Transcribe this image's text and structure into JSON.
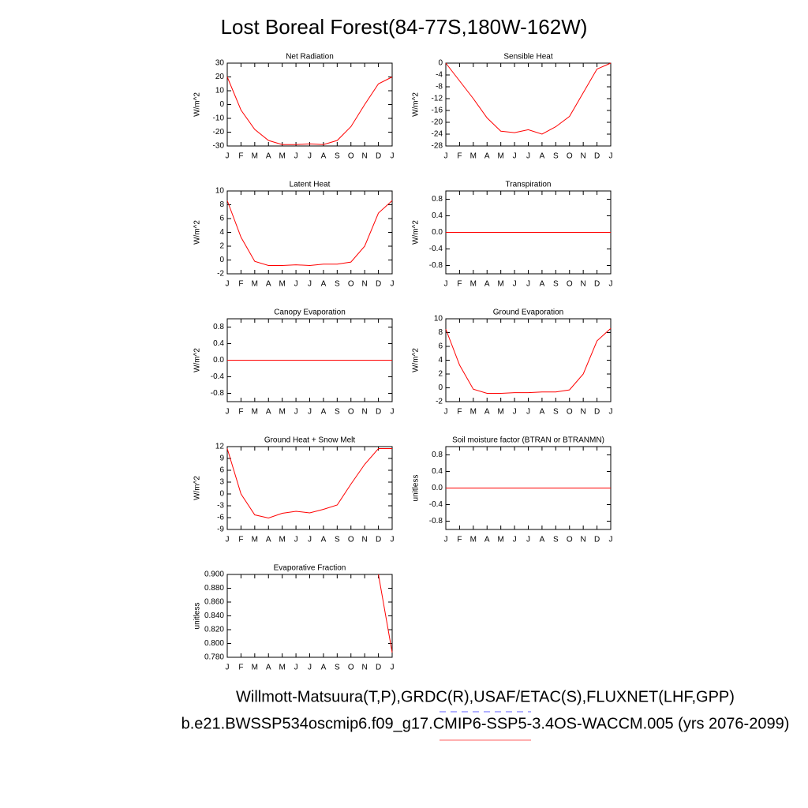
{
  "title": "Lost Boreal Forest(84-77S,180W-162W)",
  "footer": [
    {
      "text": "Willmott-Matsuura(T,P),GRDC(R),USAF/ETAC(S),FLUXNET(LHF,GPP)",
      "color": "#8080ff",
      "dashed": true
    },
    {
      "text": "b.e21.BWSSP534oscmip6.f09_g17.CMIP6-SSP5-3.4OS-WACCM.005 (yrs 2076-2099)",
      "color": "#ff8080",
      "dashed": false
    }
  ],
  "chart_data": [
    {
      "type": "line",
      "title": "Net Radiation",
      "ylabel": "W/m^2",
      "categories": [
        "J",
        "F",
        "M",
        "A",
        "M",
        "J",
        "J",
        "A",
        "S",
        "O",
        "N",
        "D",
        "J"
      ],
      "color": "#ff0000",
      "values": [
        20,
        -4,
        -18,
        -26,
        -29,
        -29,
        -28.5,
        -29,
        -26,
        -16,
        0,
        15,
        20
      ],
      "ylim": [
        -30,
        30
      ],
      "yticks": [
        -30,
        -20,
        -10,
        0,
        10,
        20,
        30
      ]
    },
    {
      "type": "line",
      "title": "Sensible Heat",
      "ylabel": "W/m^2",
      "categories": [
        "J",
        "F",
        "M",
        "A",
        "M",
        "J",
        "J",
        "A",
        "S",
        "O",
        "N",
        "D",
        "J"
      ],
      "color": "#ff0000",
      "values": [
        0,
        -6,
        -12,
        -18.5,
        -23,
        -23.5,
        -22.5,
        -24,
        -21.5,
        -18,
        -10,
        -2,
        0
      ],
      "ylim": [
        -28,
        0
      ],
      "yticks": [
        -28,
        -24,
        -20,
        -16,
        -12,
        -8,
        -4,
        0
      ]
    },
    {
      "type": "line",
      "title": "Latent Heat",
      "ylabel": "W/m^2",
      "categories": [
        "J",
        "F",
        "M",
        "A",
        "M",
        "J",
        "J",
        "A",
        "S",
        "O",
        "N",
        "D",
        "J"
      ],
      "color": "#ff0000",
      "values": [
        8.6,
        3.3,
        -0.2,
        -0.8,
        -0.8,
        -0.7,
        -0.8,
        -0.6,
        -0.6,
        -0.3,
        2,
        6.8,
        8.6
      ],
      "ylim": [
        -2,
        10
      ],
      "yticks": [
        -2,
        0,
        2,
        4,
        6,
        8,
        10
      ]
    },
    {
      "type": "line",
      "title": "Transpiration",
      "ylabel": "W/m^2",
      "categories": [
        "J",
        "F",
        "M",
        "A",
        "M",
        "J",
        "J",
        "A",
        "S",
        "O",
        "N",
        "D",
        "J"
      ],
      "color": "#ff0000",
      "values": [
        0,
        0,
        0,
        0,
        0,
        0,
        0,
        0,
        0,
        0,
        0,
        0,
        0
      ],
      "ylim": [
        -1,
        1
      ],
      "yticks": [
        -0.8,
        -0.4,
        {
          "value": 0,
          "label": "0.0"
        },
        0.4,
        0.8
      ]
    },
    {
      "type": "line",
      "title": "Canopy Evaporation",
      "ylabel": "W/m^2",
      "categories": [
        "J",
        "F",
        "M",
        "A",
        "M",
        "J",
        "J",
        "A",
        "S",
        "O",
        "N",
        "D",
        "J"
      ],
      "color": "#ff0000",
      "values": [
        0,
        0,
        0,
        0,
        0,
        0,
        0,
        0,
        0,
        0,
        0,
        0,
        0
      ],
      "ylim": [
        -1,
        1
      ],
      "yticks": [
        -0.8,
        -0.4,
        {
          "value": 0,
          "label": "0.0"
        },
        0.4,
        0.8
      ]
    },
    {
      "type": "line",
      "title": "Ground Evaporation",
      "ylabel": "W/m^2",
      "categories": [
        "J",
        "F",
        "M",
        "A",
        "M",
        "J",
        "J",
        "A",
        "S",
        "O",
        "N",
        "D",
        "J"
      ],
      "color": "#ff0000",
      "values": [
        8.5,
        3.3,
        -0.2,
        -0.8,
        -0.8,
        -0.7,
        -0.7,
        -0.6,
        -0.6,
        -0.3,
        2,
        6.8,
        8.6
      ],
      "ylim": [
        -2,
        10
      ],
      "yticks": [
        -2,
        0,
        2,
        4,
        6,
        8,
        10
      ]
    },
    {
      "type": "line",
      "title": "Ground Heat + Snow Melt",
      "ylabel": "W/m^2",
      "categories": [
        "J",
        "F",
        "M",
        "A",
        "M",
        "J",
        "J",
        "A",
        "S",
        "O",
        "N",
        "D",
        "J"
      ],
      "color": "#ff0000",
      "values": [
        11.5,
        0,
        -5.3,
        -6.1,
        -4.9,
        -4.4,
        -4.8,
        -3.9,
        -2.8,
        2.5,
        7.5,
        11.5,
        11.5
      ],
      "ylim": [
        -9,
        12
      ],
      "yticks": [
        -9,
        -6,
        -3,
        0,
        3,
        6,
        9,
        12
      ]
    },
    {
      "type": "line",
      "title": "Soil moisture factor (BTRAN or BTRANMN)",
      "ylabel": "unitless",
      "categories": [
        "J",
        "F",
        "M",
        "A",
        "M",
        "J",
        "J",
        "A",
        "S",
        "O",
        "N",
        "D",
        "J"
      ],
      "color": "#ff0000",
      "values": [
        0,
        0,
        0,
        0,
        0,
        0,
        0,
        0,
        0,
        0,
        0,
        0,
        0
      ],
      "ylim": [
        -1,
        1
      ],
      "yticks": [
        -0.8,
        -0.4,
        {
          "value": 0,
          "label": "0.0"
        },
        0.4,
        0.8
      ]
    },
    {
      "type": "line",
      "title": "Evaporative Fraction",
      "ylabel": "unitless",
      "categories": [
        "J",
        "F",
        "M",
        "A",
        "M",
        "J",
        "J",
        "A",
        "S",
        "O",
        "N",
        "D",
        "J"
      ],
      "color": "#ff0000",
      "values": [
        null,
        null,
        null,
        null,
        null,
        null,
        null,
        null,
        null,
        null,
        null,
        0.9,
        0.787
      ],
      "ylim": [
        0.78,
        0.9
      ],
      "yticks": [
        {
          "value": 0.78,
          "label": "0.780"
        },
        {
          "value": 0.8,
          "label": "0.800"
        },
        {
          "value": 0.82,
          "label": "0.820"
        },
        {
          "value": 0.84,
          "label": "0.840"
        },
        {
          "value": 0.86,
          "label": "0.860"
        },
        {
          "value": 0.88,
          "label": "0.880"
        },
        {
          "value": 0.9,
          "label": "0.900"
        }
      ]
    }
  ]
}
